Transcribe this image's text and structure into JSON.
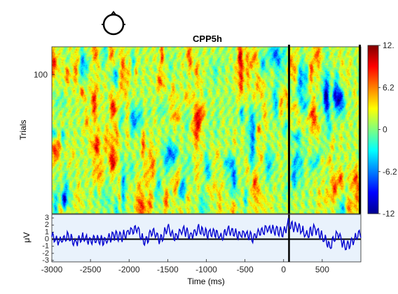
{
  "chart_data": [
    {
      "type": "heatmap",
      "title": "CPP5h",
      "ylabel": "Trials",
      "xlim": [
        -3000,
        1000
      ],
      "ylim": [
        0,
        120
      ],
      "yticks": [
        100
      ],
      "vertical_markers_ms": [
        70,
        1000
      ],
      "colorbar": {
        "range": [
          -12.4,
          12.4
        ],
        "tick_labels": [
          "12.",
          "6.2",
          "0",
          "-6.2",
          "-12"
        ],
        "tick_values": [
          12.4,
          6.2,
          0,
          -6.2,
          -12.4
        ],
        "colormap": "jet"
      },
      "electrode_head_icon": true
    },
    {
      "type": "line",
      "xlabel": "Time (ms)",
      "ylabel": "μV",
      "xlim": [
        -3000,
        1000
      ],
      "ylim": [
        -3.2,
        3.5
      ],
      "xticks": [
        -3000,
        -2500,
        -2000,
        -1500,
        -1000,
        -500,
        0,
        500
      ],
      "xtick_labels": [
        "-3000",
        "-2500",
        "-2000",
        "-1500",
        "-1000",
        "-500",
        "0",
        "500"
      ],
      "yticks": [
        3,
        2,
        1,
        0,
        -1,
        -2,
        -3
      ],
      "ytick_labels": [
        "3",
        "2",
        "1",
        "0",
        "-1",
        "-2",
        "-3"
      ],
      "vertical_marker_ms": 70,
      "series_color": "#0000d0",
      "x": [
        -3000,
        -2900,
        -2800,
        -2700,
        -2600,
        -2500,
        -2400,
        -2300,
        -2200,
        -2100,
        -2000,
        -1900,
        -1800,
        -1700,
        -1600,
        -1500,
        -1400,
        -1300,
        -1200,
        -1100,
        -1000,
        -900,
        -800,
        -700,
        -600,
        -500,
        -400,
        -300,
        -200,
        -100,
        0,
        70,
        100,
        200,
        300,
        400,
        500,
        600,
        700,
        800,
        900,
        1000
      ],
      "y": [
        0.5,
        -0.3,
        0.4,
        -0.4,
        0.2,
        -0.2,
        0.1,
        -0.3,
        0.6,
        0.3,
        1.0,
        1.6,
        -0.5,
        1.2,
        -0.3,
        1.6,
        0.2,
        1.3,
        0.5,
        1.4,
        0.7,
        1.0,
        0.2,
        1.4,
        0.6,
        0.8,
        0.2,
        1.0,
        1.5,
        1.2,
        1.0,
        2.4,
        1.8,
        1.7,
        0.5,
        1.5,
        0.3,
        -1.0,
        0.8,
        -1.2,
        -0.3,
        1.0
      ]
    }
  ]
}
